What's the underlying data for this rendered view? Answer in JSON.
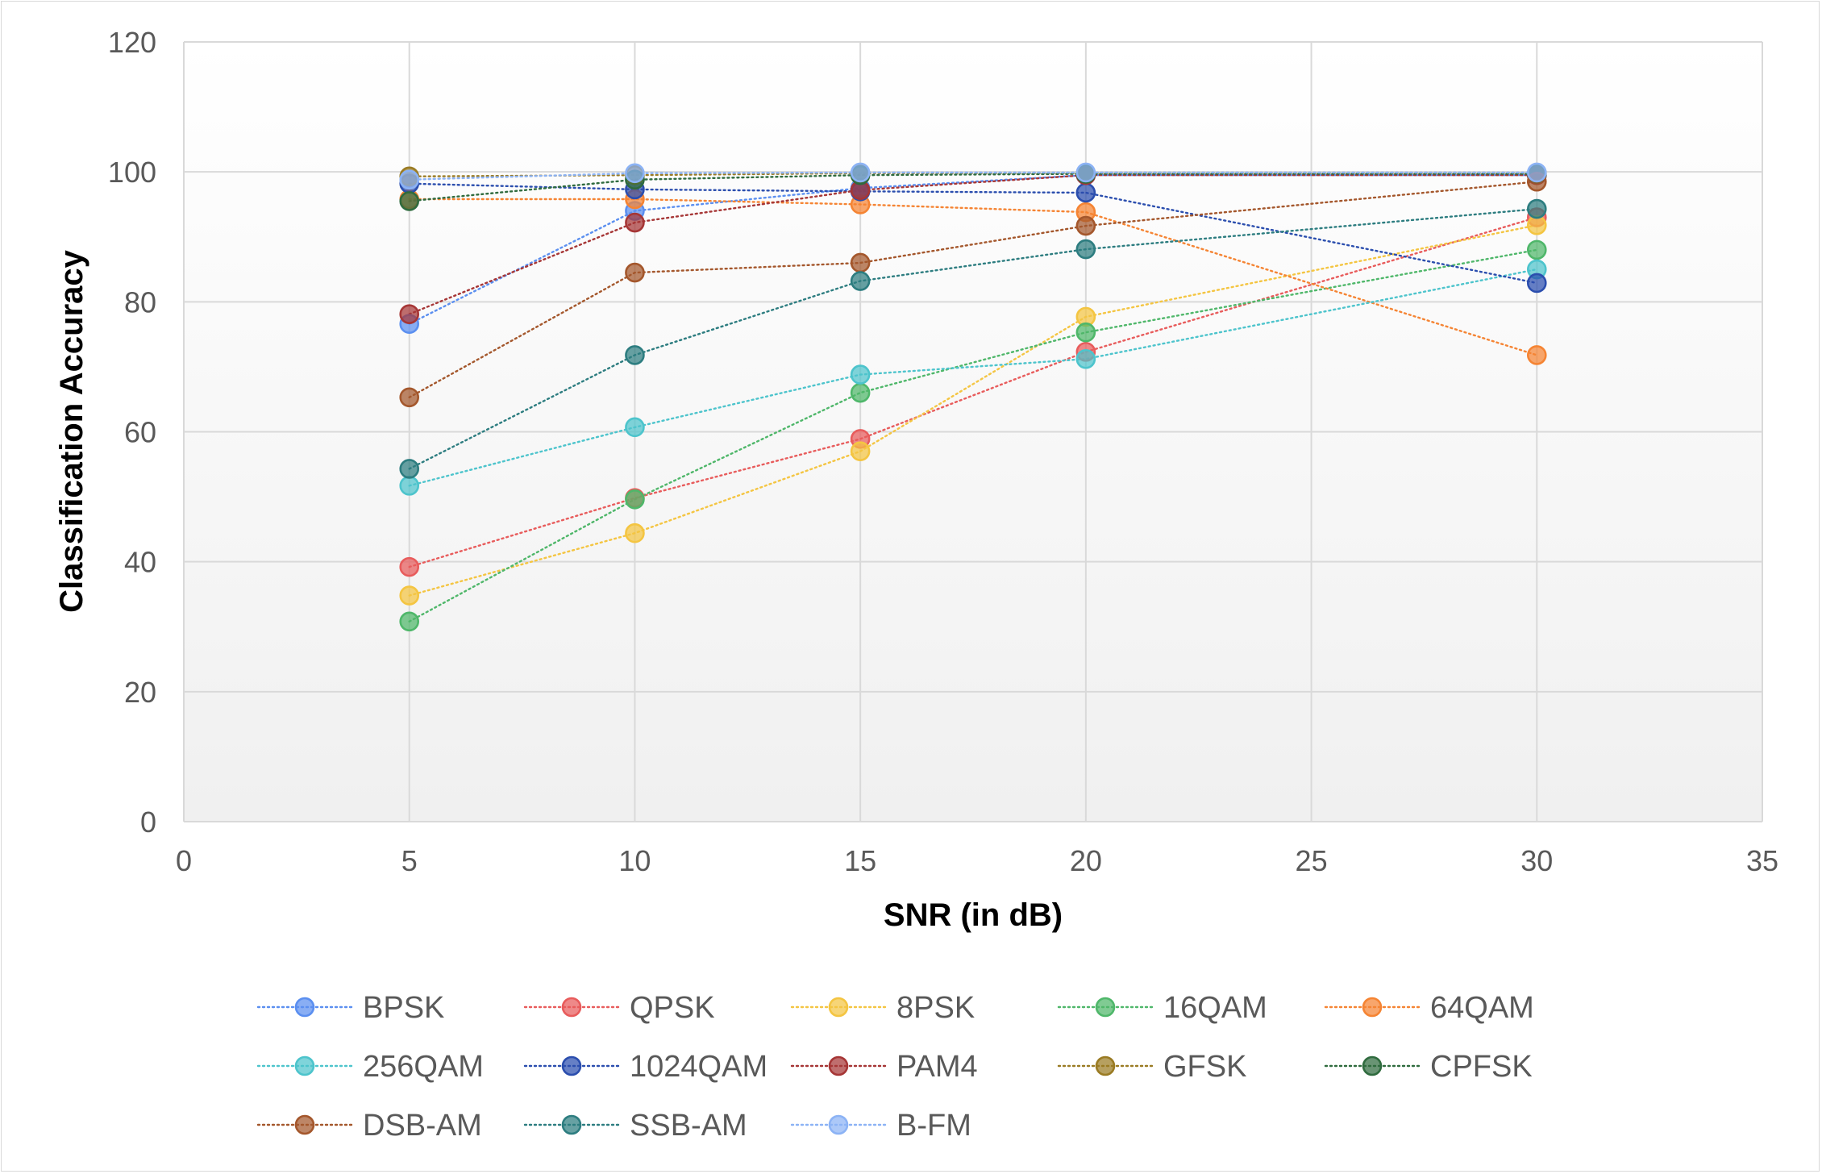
{
  "chart_data": {
    "type": "line",
    "title": "",
    "xlabel": "SNR (in dB)",
    "ylabel": "Classification Accuracy",
    "xlim": [
      0,
      35
    ],
    "ylim": [
      0,
      120
    ],
    "xticks": [
      0,
      5,
      10,
      15,
      20,
      25,
      30,
      35
    ],
    "yticks": [
      0,
      20,
      40,
      60,
      80,
      100,
      120
    ],
    "grid": true,
    "legend_position": "bottom",
    "line_style": "dotted",
    "x": [
      5,
      10,
      15,
      20,
      30
    ],
    "series": [
      {
        "name": "BPSK",
        "color": "#5b8ff0",
        "values": [
          76.6,
          94.0,
          97.5,
          99.5,
          99.5
        ]
      },
      {
        "name": "QPSK",
        "color": "#e85c5c",
        "values": [
          39.2,
          49.8,
          58.9,
          72.3,
          93.0
        ]
      },
      {
        "name": "8PSK",
        "color": "#f4c542",
        "values": [
          34.8,
          44.4,
          57.0,
          77.7,
          91.8
        ]
      },
      {
        "name": "16QAM",
        "color": "#4fb76a",
        "values": [
          30.8,
          49.6,
          66.0,
          75.3,
          88.0
        ]
      },
      {
        "name": "64QAM",
        "color": "#f58433",
        "values": [
          95.8,
          95.8,
          95.0,
          93.8,
          71.8
        ]
      },
      {
        "name": "256QAM",
        "color": "#4dc4cc",
        "values": [
          51.7,
          60.7,
          68.8,
          71.2,
          85.0
        ]
      },
      {
        "name": "1024QAM",
        "color": "#2b4eae",
        "values": [
          98.2,
          97.3,
          97.0,
          96.8,
          82.9
        ]
      },
      {
        "name": "PAM4",
        "color": "#a63636",
        "values": [
          78.1,
          92.2,
          97.2,
          99.5,
          99.5
        ]
      },
      {
        "name": "GFSK",
        "color": "#9a7b23",
        "values": [
          99.3,
          99.5,
          99.8,
          99.8,
          99.8
        ]
      },
      {
        "name": "CPFSK",
        "color": "#2f6b3e",
        "values": [
          95.5,
          98.8,
          99.5,
          99.7,
          99.7
        ]
      },
      {
        "name": "DSB-AM",
        "color": "#a4572c",
        "values": [
          65.3,
          84.5,
          86.0,
          91.7,
          98.5
        ]
      },
      {
        "name": "SSB-AM",
        "color": "#2d7d80",
        "values": [
          54.3,
          71.8,
          83.2,
          88.1,
          94.3
        ]
      },
      {
        "name": "B-FM",
        "color": "#8cb3f5",
        "values": [
          98.8,
          99.8,
          99.9,
          99.9,
          99.9
        ]
      }
    ]
  }
}
